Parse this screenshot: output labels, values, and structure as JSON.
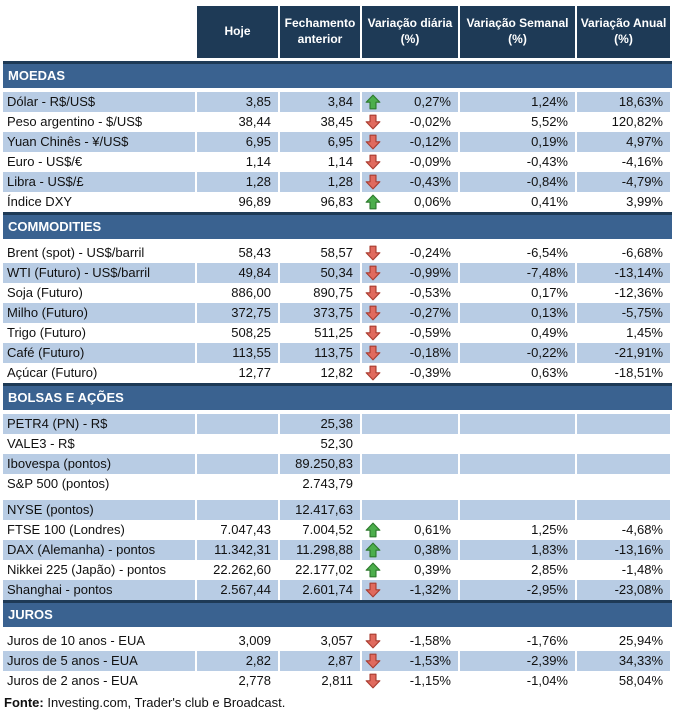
{
  "colors": {
    "header_bg": "#1e3a56",
    "section_bg": "#3a6290",
    "row_alt_bg": "#b8cce4",
    "row_bg": "#ffffff",
    "grid_line": "#ffffff",
    "text": "#111111",
    "up_arrow": "#4cae4c",
    "up_arrow_border": "#2d7a2d",
    "down_arrow": "#e06a5e",
    "down_arrow_border": "#a93c30"
  },
  "chart_data": {
    "type": "table",
    "columns": [
      "",
      "Hoje",
      "Fechamento anterior",
      "Variação diária (%)",
      "Variação Semanal (%)",
      "Variação Anual (%)"
    ],
    "sections": [
      {
        "id": "moedas",
        "title": "MOEDAS",
        "rows": [
          {
            "label": "Dólar - R$/US$",
            "hoje": "3,85",
            "fechamento": "3,84",
            "arrow": "up",
            "diaria": "0,27%",
            "semanal": "1,24%",
            "anual": "18,63%",
            "shade": "blue"
          },
          {
            "label": "Peso argentino - $/US$",
            "hoje": "38,44",
            "fechamento": "38,45",
            "arrow": "down",
            "diaria": "-0,02%",
            "semanal": "5,52%",
            "anual": "120,82%",
            "shade": "white"
          },
          {
            "label": "Yuan Chinês - ¥/US$",
            "hoje": "6,95",
            "fechamento": "6,95",
            "arrow": "down",
            "diaria": "-0,12%",
            "semanal": "0,19%",
            "anual": "4,97%",
            "shade": "blue"
          },
          {
            "label": "Euro - US$/€",
            "hoje": "1,14",
            "fechamento": "1,14",
            "arrow": "down",
            "diaria": "-0,09%",
            "semanal": "-0,43%",
            "anual": "-4,16%",
            "shade": "white"
          },
          {
            "label": "Libra - US$/£",
            "hoje": "1,28",
            "fechamento": "1,28",
            "arrow": "down",
            "diaria": "-0,43%",
            "semanal": "-0,84%",
            "anual": "-4,79%",
            "shade": "blue"
          },
          {
            "label": "Índice DXY",
            "hoje": "96,89",
            "fechamento": "96,83",
            "arrow": "up",
            "diaria": "0,06%",
            "semanal": "0,41%",
            "anual": "3,99%",
            "shade": "white"
          }
        ]
      },
      {
        "id": "commodities",
        "title": "COMMODITIES",
        "rows": [
          {
            "label": "Brent (spot) - US$/barril",
            "hoje": "58,43",
            "fechamento": "58,57",
            "arrow": "down",
            "diaria": "-0,24%",
            "semanal": "-6,54%",
            "anual": "-6,68%",
            "shade": "white"
          },
          {
            "label": "WTI (Futuro) - US$/barril",
            "hoje": "49,84",
            "fechamento": "50,34",
            "arrow": "down",
            "diaria": "-0,99%",
            "semanal": "-7,48%",
            "anual": "-13,14%",
            "shade": "blue"
          },
          {
            "label": "Soja (Futuro)",
            "hoje": "886,00",
            "fechamento": "890,75",
            "arrow": "down",
            "diaria": "-0,53%",
            "semanal": "0,17%",
            "anual": "-12,36%",
            "shade": "white"
          },
          {
            "label": "Milho (Futuro)",
            "hoje": "372,75",
            "fechamento": "373,75",
            "arrow": "down",
            "diaria": "-0,27%",
            "semanal": "0,13%",
            "anual": "-5,75%",
            "shade": "blue"
          },
          {
            "label": "Trigo (Futuro)",
            "hoje": "508,25",
            "fechamento": "511,25",
            "arrow": "down",
            "diaria": "-0,59%",
            "semanal": "0,49%",
            "anual": "1,45%",
            "shade": "white"
          },
          {
            "label": "Café (Futuro)",
            "hoje": "113,55",
            "fechamento": "113,75",
            "arrow": "down",
            "diaria": "-0,18%",
            "semanal": "-0,22%",
            "anual": "-21,91%",
            "shade": "blue"
          },
          {
            "label": "Açúcar (Futuro)",
            "hoje": "12,77",
            "fechamento": "12,82",
            "arrow": "down",
            "diaria": "-0,39%",
            "semanal": "0,63%",
            "anual": "-18,51%",
            "shade": "white"
          }
        ]
      },
      {
        "id": "bolsas-e-acoes",
        "title": "BOLSAS E AÇÕES",
        "rows": [
          {
            "label": "PETR4 (PN) - R$",
            "hoje": "",
            "fechamento": "25,38",
            "arrow": "",
            "diaria": "",
            "semanal": "",
            "anual": "",
            "shade": "blue"
          },
          {
            "label": "VALE3 - R$",
            "hoje": "",
            "fechamento": "52,30",
            "arrow": "",
            "diaria": "",
            "semanal": "",
            "anual": "",
            "shade": "white"
          },
          {
            "label": "Ibovespa (pontos)",
            "hoje": "",
            "fechamento": "89.250,83",
            "arrow": "",
            "diaria": "",
            "semanal": "",
            "anual": "",
            "shade": "blue"
          },
          {
            "label": "S&P 500 (pontos)",
            "hoje": "",
            "fechamento": "2.743,79",
            "arrow": "",
            "diaria": "",
            "semanal": "",
            "anual": "",
            "shade": "white",
            "gap_after": true
          },
          {
            "label": "NYSE (pontos)",
            "hoje": "",
            "fechamento": "12.417,63",
            "arrow": "",
            "diaria": "",
            "semanal": "",
            "anual": "",
            "shade": "blue"
          },
          {
            "label": "FTSE 100 (Londres)",
            "hoje": "7.047,43",
            "fechamento": "7.004,52",
            "arrow": "up",
            "diaria": "0,61%",
            "semanal": "1,25%",
            "anual": "-4,68%",
            "shade": "white"
          },
          {
            "label": "DAX (Alemanha) - pontos",
            "hoje": "11.342,31",
            "fechamento": "11.298,88",
            "arrow": "up",
            "diaria": "0,38%",
            "semanal": "1,83%",
            "anual": "-13,16%",
            "shade": "blue"
          },
          {
            "label": "Nikkei 225 (Japão) - pontos",
            "hoje": "22.262,60",
            "fechamento": "22.177,02",
            "arrow": "up",
            "diaria": "0,39%",
            "semanal": "2,85%",
            "anual": "-1,48%",
            "shade": "white"
          },
          {
            "label": "Shanghai - pontos",
            "hoje": "2.567,44",
            "fechamento": "2.601,74",
            "arrow": "down",
            "diaria": "-1,32%",
            "semanal": "-2,95%",
            "anual": "-23,08%",
            "shade": "blue"
          }
        ]
      },
      {
        "id": "juros",
        "title": "JUROS",
        "rows": [
          {
            "label": "Juros de 10 anos - EUA",
            "hoje": "3,009",
            "fechamento": "3,057",
            "arrow": "down",
            "diaria": "-1,58%",
            "semanal": "-1,76%",
            "anual": "25,94%",
            "shade": "white"
          },
          {
            "label": "Juros de 5 anos - EUA",
            "hoje": "2,82",
            "fechamento": "2,87",
            "arrow": "down",
            "diaria": "-1,53%",
            "semanal": "-2,39%",
            "anual": "34,33%",
            "shade": "blue"
          },
          {
            "label": "Juros de 2 anos - EUA",
            "hoje": "2,778",
            "fechamento": "2,811",
            "arrow": "down",
            "diaria": "-1,15%",
            "semanal": "-1,04%",
            "anual": "58,04%",
            "shade": "white"
          }
        ]
      }
    ]
  },
  "footer": {
    "bold": "Fonte:",
    "text": " Investing.com, Trader's club e Broadcast."
  }
}
